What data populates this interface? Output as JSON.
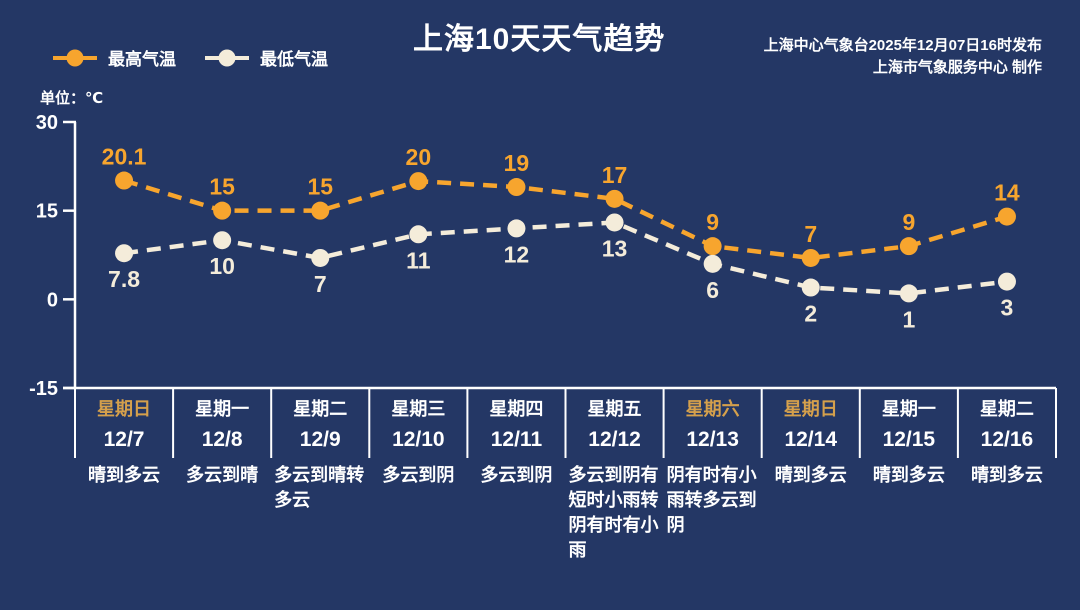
{
  "title": "上海10天天气趋势",
  "source": {
    "line1": "上海中心气象台2025年12月07日16时发布",
    "line2": "上海市气象服务中心  制作"
  },
  "unit_label": "单位：℃",
  "legend": {
    "high_label": "最高气温",
    "low_label": "最低气温"
  },
  "colors": {
    "background": "#243765",
    "high": "#F7A52E",
    "low": "#F4ECDA",
    "axis": "#FFFFFF",
    "text": "#FFFFFF",
    "weekend_text": "#D5A04C"
  },
  "chart_data": {
    "type": "line",
    "title": "上海10天天气趋势",
    "categories": [
      "12/7",
      "12/8",
      "12/9",
      "12/10",
      "12/11",
      "12/12",
      "12/13",
      "12/14",
      "12/15",
      "12/16"
    ],
    "series": [
      {
        "name": "最高气温",
        "values": [
          20.1,
          15,
          15,
          20,
          19,
          17,
          9,
          7,
          9,
          14
        ],
        "color": "#F7A52E",
        "style": "dashed",
        "labels": "above"
      },
      {
        "name": "最低气温",
        "values": [
          7.8,
          10,
          7,
          11,
          12,
          13,
          6,
          2,
          1,
          3
        ],
        "color": "#F4ECDA",
        "style": "dashed",
        "labels": "below"
      }
    ],
    "xlabel": "",
    "ylabel": "℃",
    "yticks": [
      30,
      15,
      0,
      -15
    ],
    "ylim": [
      -15,
      30
    ],
    "grid": false,
    "legend_position": "top-left"
  },
  "days": [
    {
      "weekday": "星期日",
      "date": "12/7",
      "weather": "晴到多云"
    },
    {
      "weekday": "星期一",
      "date": "12/8",
      "weather": "多云到晴"
    },
    {
      "weekday": "星期二",
      "date": "12/9",
      "weather": "多云到晴转多云"
    },
    {
      "weekday": "星期三",
      "date": "12/10",
      "weather": "多云到阴"
    },
    {
      "weekday": "星期四",
      "date": "12/11",
      "weather": "多云到阴"
    },
    {
      "weekday": "星期五",
      "date": "12/12",
      "weather": "多云到阴有短时小雨转阴有时有小雨"
    },
    {
      "weekday": "星期六",
      "date": "12/13",
      "weather": "阴有时有小雨转多云到阴"
    },
    {
      "weekday": "星期日",
      "date": "12/14",
      "weather": "晴到多云"
    },
    {
      "weekday": "星期一",
      "date": "12/15",
      "weather": "晴到多云"
    },
    {
      "weekday": "星期二",
      "date": "12/16",
      "weather": "晴到多云"
    }
  ]
}
